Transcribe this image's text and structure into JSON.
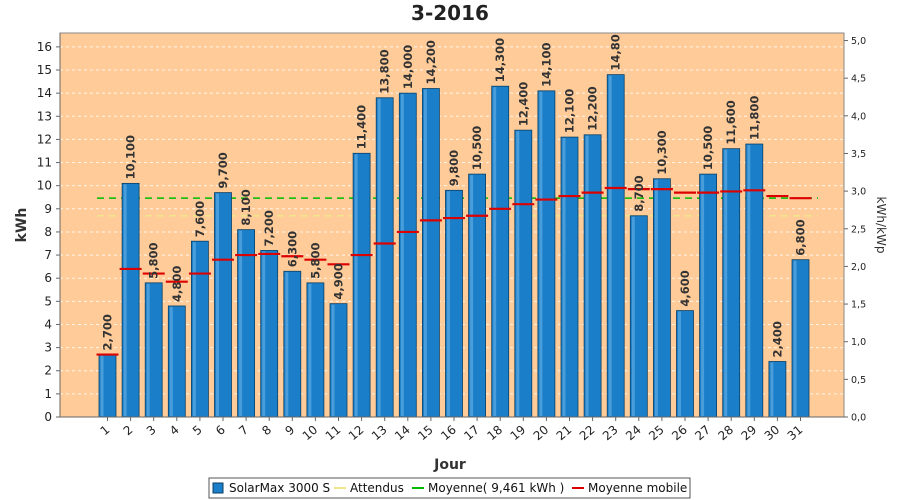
{
  "chart_data": {
    "type": "bar",
    "title": "3-2016",
    "xlabel": "Jour",
    "ylabel": "kWh",
    "ylabel_right": "kWh/kWp",
    "ylim": [
      0,
      16.6
    ],
    "ylim_right": [
      0,
      5.1
    ],
    "yticks": [
      "0",
      "1",
      "2",
      "3",
      "4",
      "5",
      "6",
      "7",
      "8",
      "9",
      "10",
      "11",
      "12",
      "13",
      "14",
      "15",
      "16"
    ],
    "yticks_right": [
      "0,0",
      "0,5",
      "1,0",
      "1,5",
      "2,0",
      "2,5",
      "3,0",
      "3,5",
      "4,0",
      "4,5",
      "5,0"
    ],
    "categories": [
      "1",
      "2",
      "3",
      "4",
      "5",
      "6",
      "7",
      "8",
      "9",
      "10",
      "11",
      "12",
      "13",
      "14",
      "15",
      "16",
      "17",
      "18",
      "19",
      "20",
      "21",
      "22",
      "23",
      "24",
      "25",
      "26",
      "27",
      "28",
      "29",
      "30",
      "31"
    ],
    "series": [
      {
        "name": "SolarMax 3000 S",
        "values": [
          2.7,
          10.1,
          5.8,
          4.8,
          7.6,
          9.7,
          8.1,
          7.2,
          6.3,
          5.8,
          4.9,
          11.4,
          13.8,
          14.0,
          14.2,
          9.8,
          10.5,
          14.3,
          12.4,
          14.1,
          12.1,
          12.2,
          14.8,
          8.7,
          10.3,
          4.6,
          10.5,
          11.6,
          11.8,
          2.4,
          6.8
        ],
        "labels": [
          "2,700",
          "10,100",
          "5,800",
          "4,800",
          "7,600",
          "9,700",
          "8,100",
          "7,200",
          "6,300",
          "5,800",
          "4,900",
          "11,400",
          "13,800",
          "14,000",
          "14,200",
          "9,800",
          "10,500",
          "14,300",
          "12,400",
          "14,100",
          "12,100",
          "12,200",
          "14,80",
          "8,700",
          "10,300",
          "4,600",
          "10,500",
          "11,600",
          "11,800",
          "2,400",
          "6,800"
        ],
        "color": "#1a7fc8"
      },
      {
        "name": "Moyenne mobile",
        "values": [
          2.7,
          6.4,
          6.2,
          5.85,
          6.2,
          6.8,
          7.0,
          7.05,
          6.95,
          6.8,
          6.6,
          7.0,
          7.5,
          8.0,
          8.5,
          8.6,
          8.7,
          9.0,
          9.2,
          9.4,
          9.55,
          9.7,
          9.9,
          9.85,
          9.85,
          9.7,
          9.7,
          9.75,
          9.8,
          9.55,
          9.46
        ],
        "color": "#dd0000"
      }
    ],
    "reference_lines": [
      {
        "name": "Attendus",
        "value": 8.7,
        "color": "#f0e68c"
      },
      {
        "name": "Moyenne( 9,461 kWh )",
        "value": 9.461,
        "color": "#00bb00"
      }
    ],
    "legend": {
      "position": "bottom",
      "items": [
        {
          "label": "SolarMax 3000 S",
          "color": "#1a7fc8"
        },
        {
          "label": "Attendus",
          "color": "#f0e68c"
        },
        {
          "label": "Moyenne( 9,461 kWh )",
          "color": "#00bb00"
        },
        {
          "label": "Moyenne mobile",
          "color": "#dd0000"
        }
      ]
    },
    "plot_background": "#ffcc99",
    "grid": true
  }
}
